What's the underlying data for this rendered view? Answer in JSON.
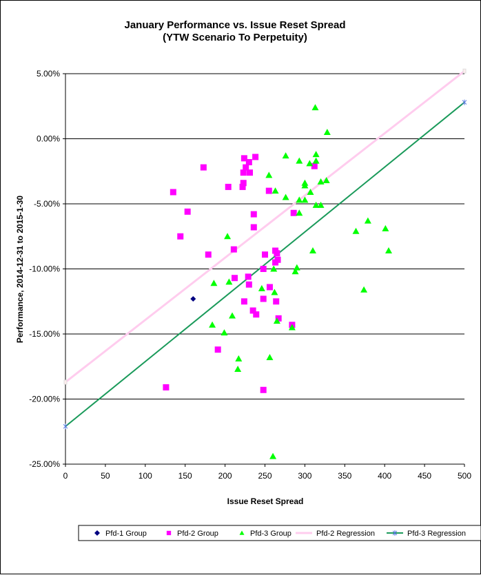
{
  "chart_data": {
    "type": "scatter",
    "title": "January Performance vs. Issue Reset Spread",
    "subtitle": "(YTW Scenario To Perpetuity)",
    "xlabel": "Issue Reset Spread",
    "ylabel": "Performance, 2014-12-31  to 2015-1-30",
    "xlim": [
      0,
      500
    ],
    "ylim": [
      -25,
      5
    ],
    "xticks": [
      "0",
      "50",
      "100",
      "150",
      "200",
      "250",
      "300",
      "350",
      "400",
      "450",
      "500"
    ],
    "yticks": [
      "5.00%",
      "0.00%",
      "-5.00%",
      "-10.00%",
      "-15.00%",
      "-20.00%",
      "-25.00%"
    ],
    "grid": "horizontal",
    "legend": "bottom",
    "series": [
      {
        "name": "Pfd-1 Group",
        "marker": "diamond",
        "color": "#000080",
        "points": [
          [
            160,
            -12.3
          ]
        ]
      },
      {
        "name": "Pfd-2 Group",
        "marker": "square",
        "color": "#ff00ff",
        "points": [
          [
            135,
            -4.1
          ],
          [
            144,
            -7.5
          ],
          [
            173,
            -2.2
          ],
          [
            153,
            -5.6
          ],
          [
            179,
            -8.9
          ],
          [
            204,
            -3.7
          ],
          [
            211,
            -8.5
          ],
          [
            212,
            -10.7
          ],
          [
            191,
            -16.2
          ],
          [
            126,
            -19.1
          ],
          [
            224,
            -1.5
          ],
          [
            238,
            -1.4
          ],
          [
            230,
            -1.8
          ],
          [
            226,
            -2.2
          ],
          [
            223,
            -2.6
          ],
          [
            231,
            -2.6
          ],
          [
            223,
            -3.4
          ],
          [
            222,
            -3.7
          ],
          [
            236,
            -5.8
          ],
          [
            236,
            -6.8
          ],
          [
            255,
            -4.0
          ],
          [
            229,
            -10.6
          ],
          [
            230,
            -11.2
          ],
          [
            224,
            -12.5
          ],
          [
            235,
            -13.2
          ],
          [
            239,
            -13.5
          ],
          [
            248,
            -10.0
          ],
          [
            250,
            -8.9
          ],
          [
            248,
            -12.3
          ],
          [
            256,
            -11.4
          ],
          [
            263,
            -8.6
          ],
          [
            263,
            -9.5
          ],
          [
            265,
            -8.8
          ],
          [
            266,
            -9.3
          ],
          [
            264,
            -12.5
          ],
          [
            267,
            -13.8
          ],
          [
            248,
            -19.3
          ],
          [
            284,
            -14.3
          ],
          [
            286,
            -5.7
          ],
          [
            312,
            -2.1
          ]
        ]
      },
      {
        "name": "Pfd-3 Group",
        "marker": "triangle",
        "color": "#00ff00",
        "points": [
          [
            313,
            2.4
          ],
          [
            328,
            0.5
          ],
          [
            276,
            -1.3
          ],
          [
            293,
            -1.7
          ],
          [
            306,
            -1.9
          ],
          [
            314,
            -1.2
          ],
          [
            314,
            -1.7
          ],
          [
            320,
            -3.3
          ],
          [
            327,
            -3.2
          ],
          [
            255,
            -2.8
          ],
          [
            263,
            -4.0
          ],
          [
            276,
            -4.5
          ],
          [
            300,
            -3.6
          ],
          [
            300,
            -3.4
          ],
          [
            307,
            -4.1
          ],
          [
            300,
            -4.7
          ],
          [
            293,
            -4.7
          ],
          [
            293,
            -5.7
          ],
          [
            314,
            -5.1
          ],
          [
            320,
            -5.1
          ],
          [
            203,
            -7.5
          ],
          [
            310,
            -8.6
          ],
          [
            364,
            -7.1
          ],
          [
            379,
            -6.3
          ],
          [
            401,
            -6.9
          ],
          [
            405,
            -8.6
          ],
          [
            374,
            -11.6
          ],
          [
            290,
            -9.9
          ],
          [
            288,
            -10.2
          ],
          [
            261,
            -10.0
          ],
          [
            262,
            -11.8
          ],
          [
            205,
            -11.0
          ],
          [
            186,
            -11.1
          ],
          [
            246,
            -11.5
          ],
          [
            209,
            -13.6
          ],
          [
            184,
            -14.3
          ],
          [
            199,
            -14.9
          ],
          [
            265,
            -14.0
          ],
          [
            284,
            -14.5
          ],
          [
            217,
            -16.9
          ],
          [
            216,
            -17.7
          ],
          [
            256,
            -16.8
          ],
          [
            260,
            -24.4
          ]
        ]
      },
      {
        "name": "Pfd-2 Regression",
        "type": "line",
        "color": "#ffccee",
        "points": [
          [
            0,
            -18.7
          ],
          [
            500,
            5.2
          ]
        ]
      },
      {
        "name": "Pfd-3 Regression",
        "type": "line",
        "color": "#1a9a5a",
        "points": [
          [
            0,
            -22.1
          ],
          [
            500,
            2.8
          ]
        ]
      }
    ]
  }
}
